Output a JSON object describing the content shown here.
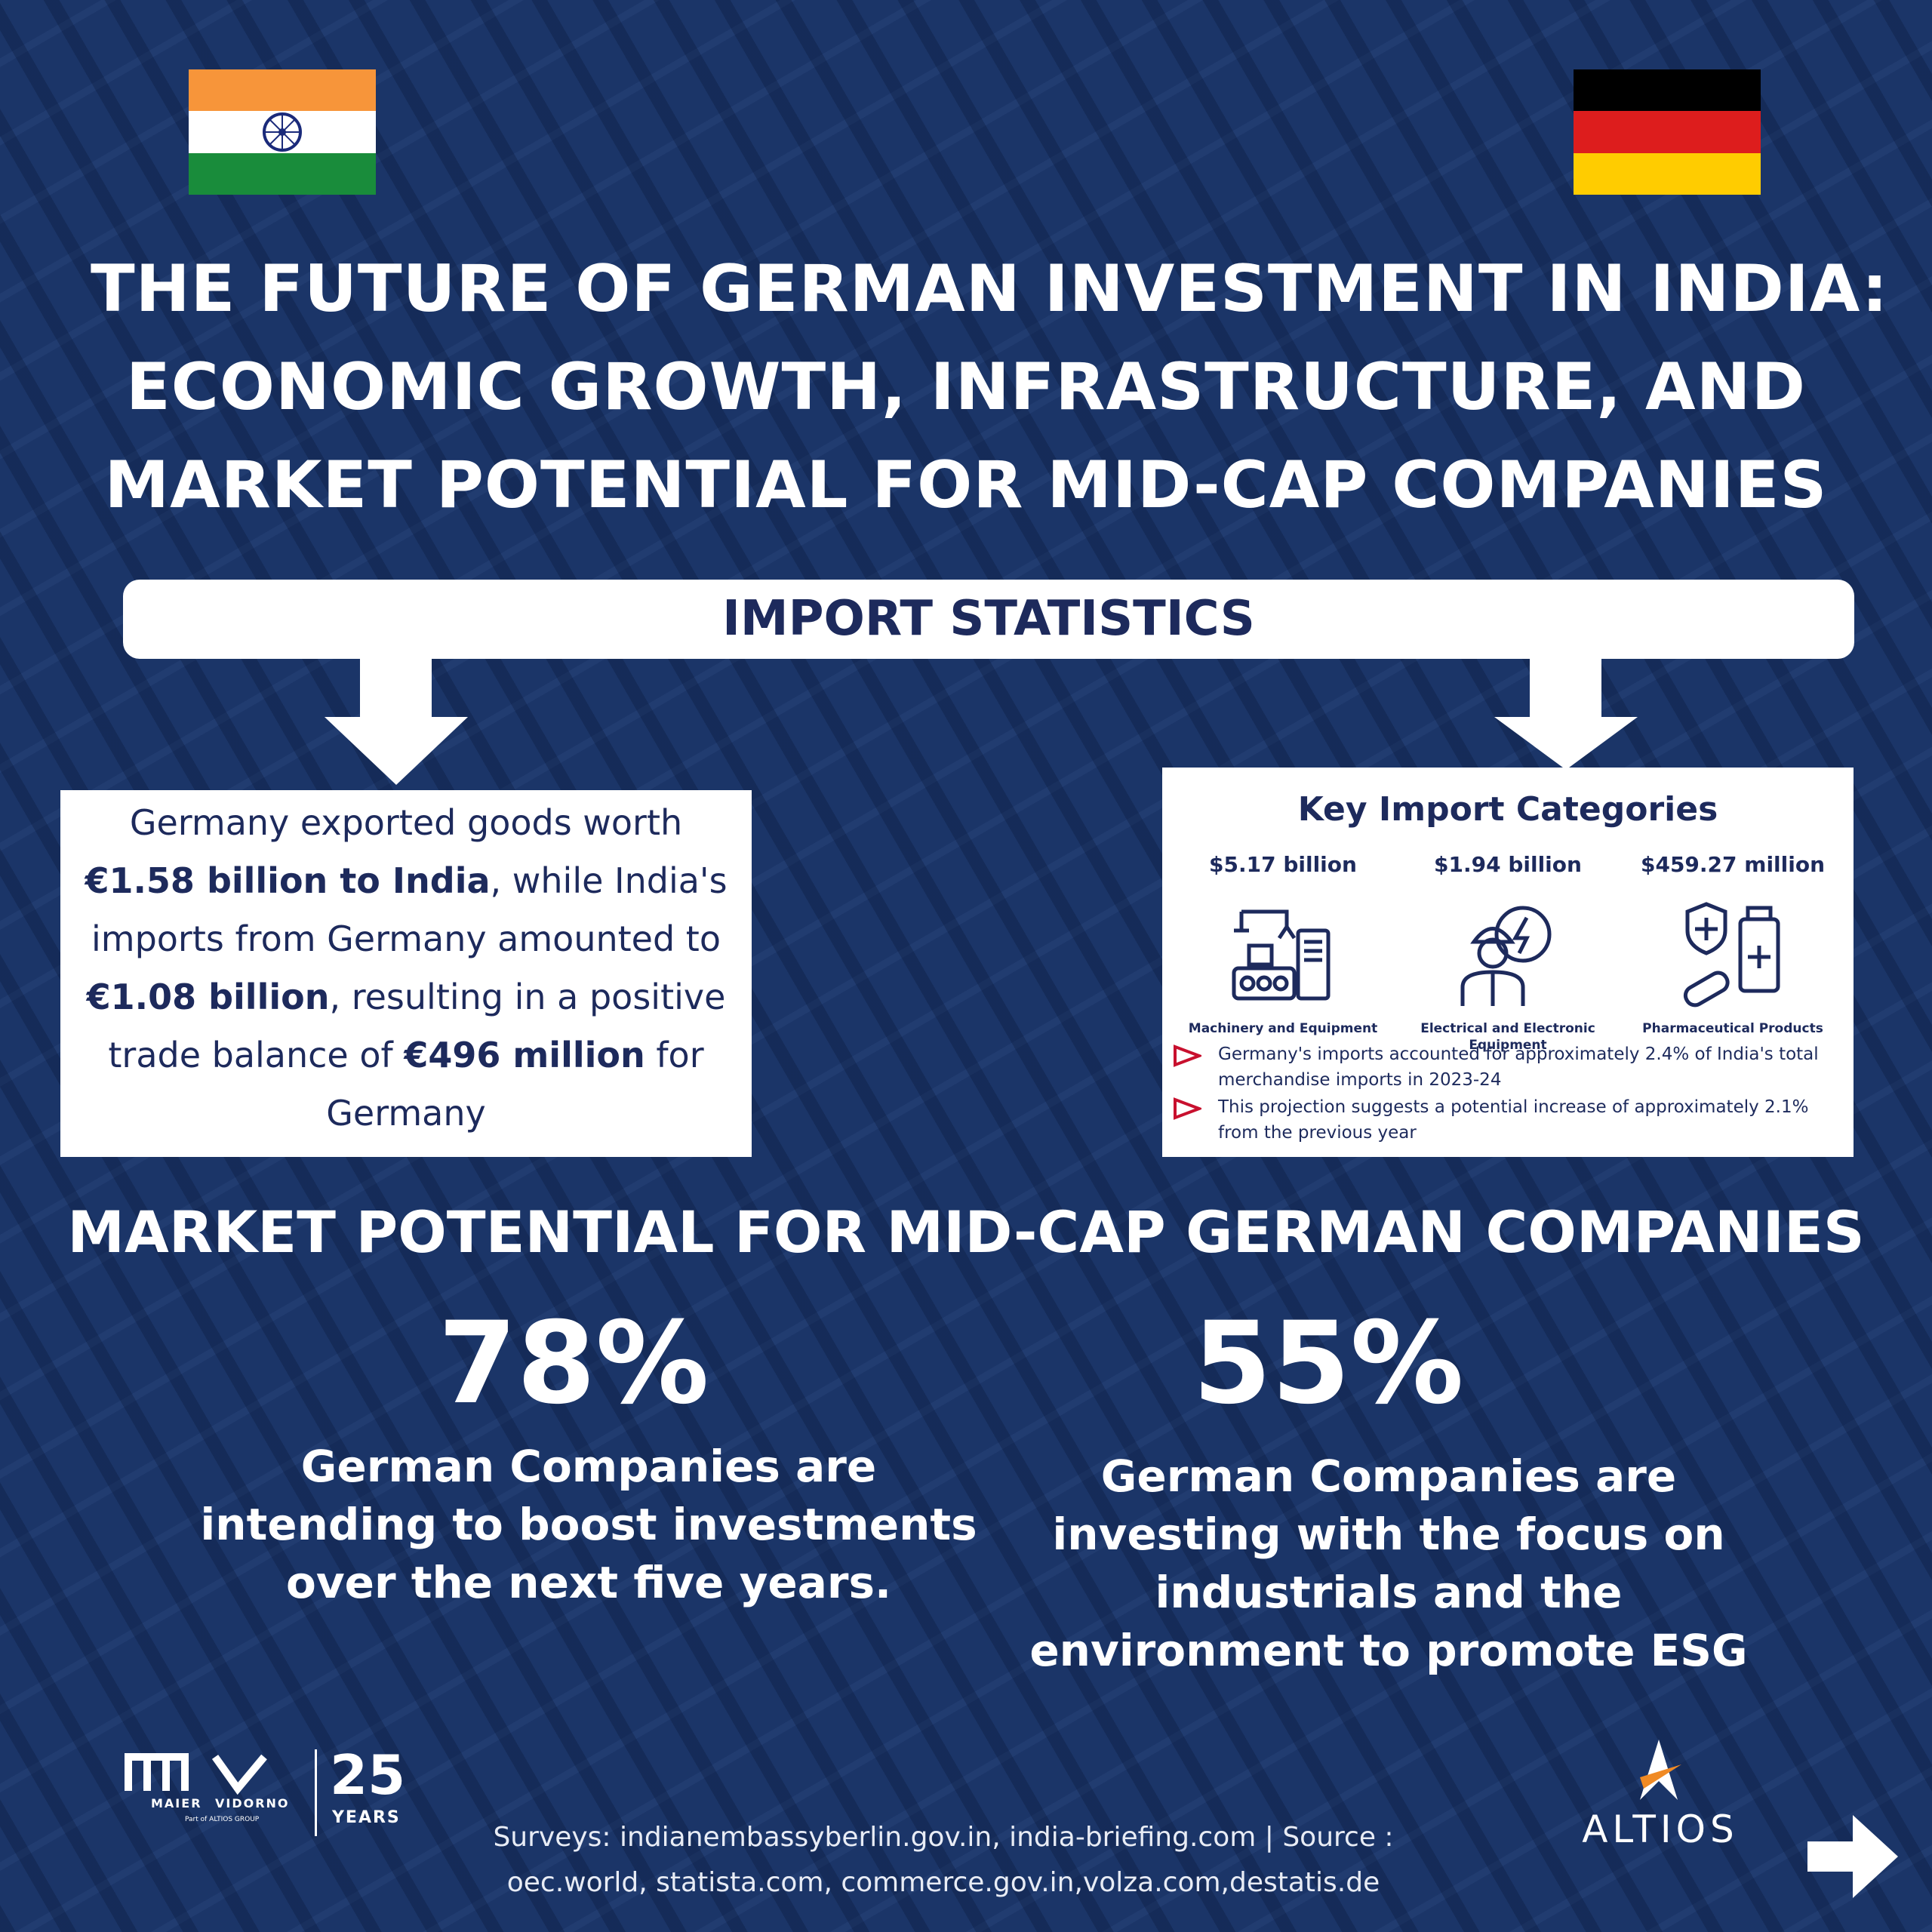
{
  "title": {
    "line1": "THE FUTURE OF GERMAN INVESTMENT IN INDIA:",
    "line2": "ECONOMIC GROWTH, INFRASTRUCTURE, AND",
    "line3": "MARKET POTENTIAL FOR MID-CAP COMPANIES"
  },
  "import_bar": {
    "label": "IMPORT STATISTICS"
  },
  "left_box": {
    "p1": "Germany exported goods worth ",
    "b1": "€1.58 billion to India",
    "p2": ", while India's imports from Germany amounted to ",
    "b2": "€1.08 billion",
    "p3": ", resulting in a positive trade balance of ",
    "b3": "€496 million",
    "p4": " for Germany"
  },
  "key_imports": {
    "title": "Key Import Categories",
    "categories": [
      {
        "value": "$5.17 billion",
        "label": "Machinery and Equipment",
        "icon": "machinery-icon"
      },
      {
        "value": "$1.94 billion",
        "label": "Electrical and Electronic Equipment",
        "icon": "electrical-worker-icon"
      },
      {
        "value": "$459.27 million",
        "label": "Pharmaceutical Products",
        "icon": "pharmaceutical-icon"
      }
    ],
    "bullets": [
      "Germany's imports accounted for approximately 2.4% of India's total merchandise imports in 2023-24",
      "This projection suggests a potential increase of approximately 2.1% from the previous year"
    ]
  },
  "market": {
    "title": "MARKET POTENTIAL FOR MID-CAP GERMAN COMPANIES",
    "stat1": {
      "value": "78%",
      "desc": "German Companies are intending to boost investments over the next five years."
    },
    "stat2": {
      "value": "55%",
      "desc": "German Companies are investing with the focus on industrials and the environment to promote ESG"
    }
  },
  "footer": {
    "line1": "Surveys: indianembassyberlin.gov.in, india-briefing.com | Source :",
    "line2": "oec.world, statista.com, commerce.gov.in,volza.com,destatis.de",
    "mv_logo_left": "MAIER",
    "mv_logo_right": "VIDORNO",
    "mv_logo_sub": "Part of ALTIOS GROUP",
    "mv_years_num": "25",
    "mv_years_label": "YEARS",
    "altios": "ALTIOS"
  },
  "colors": {
    "background": "#1b3568",
    "navy_text": "#1d2a5c",
    "india_saffron": "#f7953a",
    "india_green": "#198c3b",
    "germany_black": "#000000",
    "germany_red": "#dd1d1d",
    "germany_gold": "#ffcc00",
    "bullet_red": "#c8102e",
    "altios_orange": "#f08a24"
  }
}
